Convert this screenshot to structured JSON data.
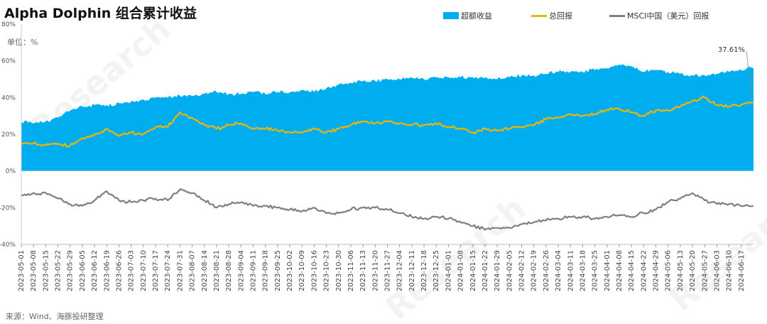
{
  "chart_data": {
    "type": "area",
    "title": "Alpha Dolphin 组合累计收益",
    "unit_label": "单位：%",
    "source": "来源：Wind、海豚投研整理",
    "ylim": [
      -40,
      80
    ],
    "yticks": [
      {
        "value": 80,
        "label": "80%"
      },
      {
        "value": 60,
        "label": "60%"
      },
      {
        "value": 40,
        "label": "40%"
      },
      {
        "value": 20,
        "label": "20%"
      },
      {
        "value": 0,
        "label": "0%"
      },
      {
        "value": -20,
        "label": "-20%"
      },
      {
        "value": -40,
        "label": "-40%"
      }
    ],
    "x_start": "2023-05-01",
    "x_end": "2024-06-24",
    "xticks": [
      "2023-05-01",
      "2023-05-08",
      "2023-05-15",
      "2023-05-22",
      "2023-05-29",
      "2023-06-05",
      "2023-06-12",
      "2023-06-19",
      "2023-06-26",
      "2023-07-03",
      "2023-07-10",
      "2023-07-17",
      "2023-07-24",
      "2023-07-31",
      "2023-08-07",
      "2023-08-14",
      "2023-08-21",
      "2023-08-28",
      "2023-09-04",
      "2023-09-11",
      "2023-09-18",
      "2023-09-25",
      "2023-10-02",
      "2023-10-09",
      "2023-10-16",
      "2023-10-23",
      "2023-10-30",
      "2023-11-06",
      "2023-11-13",
      "2023-11-20",
      "2023-11-27",
      "2023-12-04",
      "2023-12-11",
      "2023-12-18",
      "2023-12-25",
      "2024-01-01",
      "2024-01-08",
      "2024-01-15",
      "2024-01-22",
      "2024-01-29",
      "2024-02-05",
      "2024-02-12",
      "2024-02-19",
      "2024-02-26",
      "2024-03-04",
      "2024-03-11",
      "2024-03-18",
      "2024-03-25",
      "2024-04-01",
      "2024-04-08",
      "2024-04-15",
      "2024-04-22",
      "2024-04-29",
      "2024-05-06",
      "2024-05-13",
      "2024-05-20",
      "2024-05-27",
      "2024-06-03",
      "2024-06-10",
      "2024-06-17"
    ],
    "legend_position": "top-right",
    "annotation": {
      "date": "2024-06-24",
      "label": "37.61%"
    },
    "series": [
      {
        "name": "超额收益",
        "kind": "area",
        "color": "#00aeef",
        "points": [
          [
            "2023-05-01",
            27
          ],
          [
            "2023-05-08",
            26
          ],
          [
            "2023-05-15",
            27
          ],
          [
            "2023-05-22",
            29
          ],
          [
            "2023-05-29",
            33
          ],
          [
            "2023-06-05",
            35
          ],
          [
            "2023-06-12",
            36
          ],
          [
            "2023-06-19",
            36
          ],
          [
            "2023-06-26",
            37
          ],
          [
            "2023-07-03",
            38
          ],
          [
            "2023-07-10",
            39
          ],
          [
            "2023-07-17",
            40
          ],
          [
            "2023-07-24",
            40
          ],
          [
            "2023-07-31",
            41
          ],
          [
            "2023-08-07",
            41
          ],
          [
            "2023-08-14",
            42
          ],
          [
            "2023-08-21",
            43
          ],
          [
            "2023-08-28",
            42
          ],
          [
            "2023-09-04",
            42
          ],
          [
            "2023-09-11",
            43
          ],
          [
            "2023-09-18",
            42
          ],
          [
            "2023-09-25",
            43
          ],
          [
            "2023-10-02",
            43
          ],
          [
            "2023-10-09",
            44
          ],
          [
            "2023-10-16",
            43
          ],
          [
            "2023-10-23",
            45
          ],
          [
            "2023-10-30",
            47
          ],
          [
            "2023-11-06",
            48
          ],
          [
            "2023-11-13",
            49
          ],
          [
            "2023-11-20",
            49
          ],
          [
            "2023-11-27",
            50
          ],
          [
            "2023-12-04",
            50
          ],
          [
            "2023-12-11",
            51
          ],
          [
            "2023-12-18",
            50
          ],
          [
            "2023-12-25",
            51
          ],
          [
            "2024-01-01",
            51
          ],
          [
            "2024-01-08",
            51
          ],
          [
            "2024-01-15",
            51
          ],
          [
            "2024-01-22",
            51
          ],
          [
            "2024-01-29",
            50
          ],
          [
            "2024-02-05",
            51
          ],
          [
            "2024-02-12",
            52
          ],
          [
            "2024-02-19",
            52
          ],
          [
            "2024-02-26",
            53
          ],
          [
            "2024-03-04",
            54
          ],
          [
            "2024-03-11",
            54
          ],
          [
            "2024-03-18",
            54
          ],
          [
            "2024-03-25",
            55
          ],
          [
            "2024-04-01",
            56
          ],
          [
            "2024-04-08",
            58
          ],
          [
            "2024-04-15",
            57
          ],
          [
            "2024-04-22",
            54
          ],
          [
            "2024-04-29",
            55
          ],
          [
            "2024-05-06",
            54
          ],
          [
            "2024-05-13",
            53
          ],
          [
            "2024-05-20",
            52
          ],
          [
            "2024-05-27",
            52
          ],
          [
            "2024-06-03",
            53
          ],
          [
            "2024-06-10",
            54
          ],
          [
            "2024-06-17",
            55
          ],
          [
            "2024-06-24",
            56
          ]
        ]
      },
      {
        "name": "总回报",
        "kind": "line",
        "color": "#f0b400",
        "points": [
          [
            "2023-05-01",
            15
          ],
          [
            "2023-05-08",
            15
          ],
          [
            "2023-05-15",
            14
          ],
          [
            "2023-05-22",
            15
          ],
          [
            "2023-05-29",
            14
          ],
          [
            "2023-06-05",
            18
          ],
          [
            "2023-06-12",
            20
          ],
          [
            "2023-06-19",
            23
          ],
          [
            "2023-06-26",
            19
          ],
          [
            "2023-07-03",
            21
          ],
          [
            "2023-07-10",
            20
          ],
          [
            "2023-07-17",
            24
          ],
          [
            "2023-07-24",
            24
          ],
          [
            "2023-07-31",
            32
          ],
          [
            "2023-08-07",
            29
          ],
          [
            "2023-08-14",
            25
          ],
          [
            "2023-08-21",
            23
          ],
          [
            "2023-08-28",
            25
          ],
          [
            "2023-09-04",
            26
          ],
          [
            "2023-09-11",
            23
          ],
          [
            "2023-09-18",
            23
          ],
          [
            "2023-09-25",
            22
          ],
          [
            "2023-10-02",
            21
          ],
          [
            "2023-10-09",
            21
          ],
          [
            "2023-10-16",
            23
          ],
          [
            "2023-10-23",
            21
          ],
          [
            "2023-10-30",
            23
          ],
          [
            "2023-11-06",
            25
          ],
          [
            "2023-11-13",
            27
          ],
          [
            "2023-11-20",
            26
          ],
          [
            "2023-11-27",
            27
          ],
          [
            "2023-12-04",
            26
          ],
          [
            "2023-12-11",
            25
          ],
          [
            "2023-12-18",
            25
          ],
          [
            "2023-12-25",
            26
          ],
          [
            "2024-01-01",
            24
          ],
          [
            "2024-01-08",
            23
          ],
          [
            "2024-01-15",
            21
          ],
          [
            "2024-01-22",
            23
          ],
          [
            "2024-01-29",
            22
          ],
          [
            "2024-02-05",
            23
          ],
          [
            "2024-02-12",
            24
          ],
          [
            "2024-02-19",
            25
          ],
          [
            "2024-02-26",
            28
          ],
          [
            "2024-03-04",
            29
          ],
          [
            "2024-03-11",
            31
          ],
          [
            "2024-03-18",
            30
          ],
          [
            "2024-03-25",
            31
          ],
          [
            "2024-04-01",
            33
          ],
          [
            "2024-04-08",
            34
          ],
          [
            "2024-04-15",
            32
          ],
          [
            "2024-04-22",
            30
          ],
          [
            "2024-04-29",
            33
          ],
          [
            "2024-05-06",
            33
          ],
          [
            "2024-05-13",
            35
          ],
          [
            "2024-05-20",
            38
          ],
          [
            "2024-05-27",
            40
          ],
          [
            "2024-06-03",
            36
          ],
          [
            "2024-06-10",
            35
          ],
          [
            "2024-06-17",
            36
          ],
          [
            "2024-06-24",
            37.61
          ]
        ]
      },
      {
        "name": "MSCI中国（美元）回报",
        "kind": "line",
        "color": "#7f7f7f",
        "points": [
          [
            "2023-05-01",
            -13
          ],
          [
            "2023-05-08",
            -12
          ],
          [
            "2023-05-15",
            -12
          ],
          [
            "2023-05-22",
            -15
          ],
          [
            "2023-05-29",
            -18
          ],
          [
            "2023-06-05",
            -19
          ],
          [
            "2023-06-12",
            -16
          ],
          [
            "2023-06-19",
            -11
          ],
          [
            "2023-06-26",
            -16
          ],
          [
            "2023-07-03",
            -17
          ],
          [
            "2023-07-10",
            -16
          ],
          [
            "2023-07-17",
            -15
          ],
          [
            "2023-07-24",
            -16
          ],
          [
            "2023-07-31",
            -10
          ],
          [
            "2023-08-07",
            -12
          ],
          [
            "2023-08-14",
            -16
          ],
          [
            "2023-08-21",
            -20
          ],
          [
            "2023-08-28",
            -18
          ],
          [
            "2023-09-04",
            -17
          ],
          [
            "2023-09-11",
            -19
          ],
          [
            "2023-09-18",
            -19
          ],
          [
            "2023-09-25",
            -20
          ],
          [
            "2023-10-02",
            -21
          ],
          [
            "2023-10-09",
            -22
          ],
          [
            "2023-10-16",
            -20
          ],
          [
            "2023-10-23",
            -23
          ],
          [
            "2023-10-30",
            -23
          ],
          [
            "2023-11-06",
            -21
          ],
          [
            "2023-11-13",
            -20
          ],
          [
            "2023-11-20",
            -20
          ],
          [
            "2023-11-27",
            -21
          ],
          [
            "2023-12-04",
            -23
          ],
          [
            "2023-12-11",
            -25
          ],
          [
            "2023-12-18",
            -26
          ],
          [
            "2023-12-25",
            -25
          ],
          [
            "2024-01-01",
            -26
          ],
          [
            "2024-01-08",
            -28
          ],
          [
            "2024-01-15",
            -30
          ],
          [
            "2024-01-22",
            -32
          ],
          [
            "2024-01-29",
            -31
          ],
          [
            "2024-02-05",
            -31
          ],
          [
            "2024-02-12",
            -29
          ],
          [
            "2024-02-19",
            -28
          ],
          [
            "2024-02-26",
            -27
          ],
          [
            "2024-03-04",
            -26
          ],
          [
            "2024-03-11",
            -25
          ],
          [
            "2024-03-18",
            -25
          ],
          [
            "2024-03-25",
            -26
          ],
          [
            "2024-04-01",
            -25
          ],
          [
            "2024-04-08",
            -24
          ],
          [
            "2024-04-15",
            -25
          ],
          [
            "2024-04-22",
            -23
          ],
          [
            "2024-04-29",
            -21
          ],
          [
            "2024-05-06",
            -17
          ],
          [
            "2024-05-13",
            -15
          ],
          [
            "2024-05-20",
            -12
          ],
          [
            "2024-05-27",
            -16
          ],
          [
            "2024-06-03",
            -18
          ],
          [
            "2024-06-10",
            -18
          ],
          [
            "2024-06-17",
            -19
          ],
          [
            "2024-06-24",
            -19
          ]
        ]
      }
    ]
  }
}
